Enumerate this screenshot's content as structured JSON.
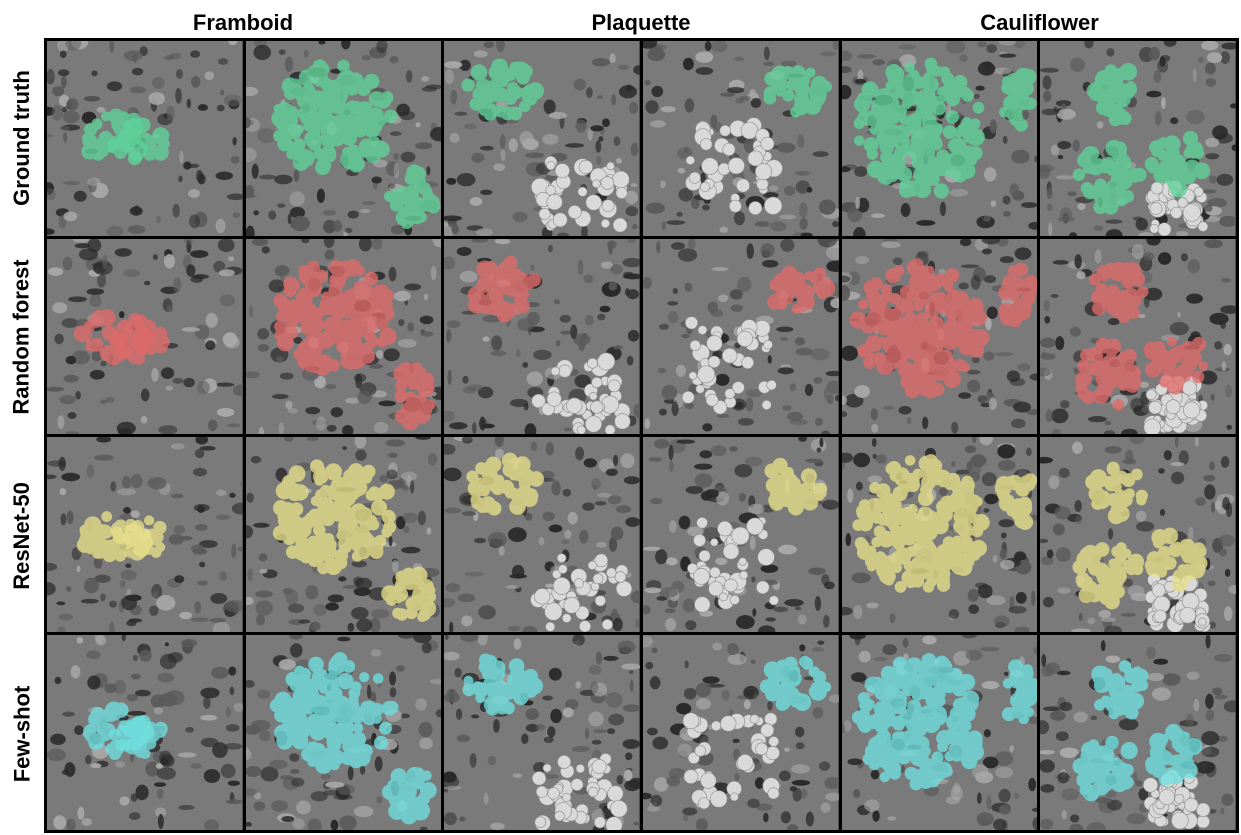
{
  "columns": [
    {
      "label": "Framboid"
    },
    {
      "label": "Plaquette"
    },
    {
      "label": "Cauliflower"
    }
  ],
  "rows": [
    {
      "label": "Ground truth",
      "overlay_color": "#5fd39a"
    },
    {
      "label": "Random forest",
      "overlay_color": "#e06a6a"
    },
    {
      "label": "ResNet-50",
      "overlay_color": "#e8e08a"
    },
    {
      "label": "Few-shot",
      "overlay_color": "#6fe0e0"
    }
  ],
  "background_colors": {
    "grain_dark": "#2a2a2a",
    "grain_mid": "#7a7a7a",
    "grain_light": "#d9d9d9"
  }
}
